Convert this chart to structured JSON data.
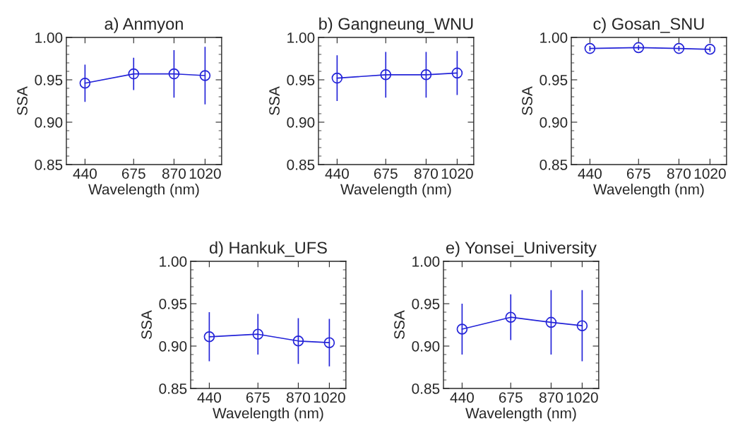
{
  "chart_data": [
    {
      "type": "line",
      "title": "a) Anmyon",
      "xlabel": "Wavelength (nm)",
      "ylabel": "SSA",
      "x": [
        440,
        675,
        870,
        1020
      ],
      "xlim": [
        350,
        1100
      ],
      "xticks": [
        440,
        675,
        870,
        1020
      ],
      "ylim": [
        0.85,
        1.0
      ],
      "yticks": [
        {
          "value": 0.85,
          "label": "0.85"
        },
        {
          "value": 0.9,
          "label": "0.90"
        },
        {
          "value": 0.95,
          "label": "0.95"
        },
        {
          "value": 1.0,
          "label": "1.00"
        }
      ],
      "marker": "circle",
      "grid": false,
      "legend": false,
      "series": [
        {
          "color": "#2323d8",
          "values": [
            0.946,
            0.957,
            0.957,
            0.955
          ],
          "errors": [
            0.022,
            0.019,
            0.028,
            0.034
          ]
        }
      ]
    },
    {
      "type": "line",
      "title": "b) Gangneung_WNU",
      "xlabel": "Wavelength (nm)",
      "ylabel": "SSA",
      "x": [
        440,
        675,
        870,
        1020
      ],
      "xlim": [
        350,
        1100
      ],
      "xticks": [
        440,
        675,
        870,
        1020
      ],
      "ylim": [
        0.85,
        1.0
      ],
      "yticks": [
        {
          "value": 0.85,
          "label": "0.85"
        },
        {
          "value": 0.9,
          "label": "0.90"
        },
        {
          "value": 0.95,
          "label": "0.95"
        },
        {
          "value": 1.0,
          "label": "1.00"
        }
      ],
      "marker": "circle",
      "grid": false,
      "legend": false,
      "series": [
        {
          "color": "#2323d8",
          "values": [
            0.952,
            0.956,
            0.956,
            0.958
          ],
          "errors": [
            0.027,
            0.027,
            0.027,
            0.026
          ]
        }
      ]
    },
    {
      "type": "line",
      "title": "c) Gosan_SNU",
      "xlabel": "Wavelength (nm)",
      "ylabel": "SSA",
      "x": [
        440,
        675,
        870,
        1020
      ],
      "xlim": [
        350,
        1100
      ],
      "xticks": [
        440,
        675,
        870,
        1020
      ],
      "ylim": [
        0.85,
        1.0
      ],
      "yticks": [
        {
          "value": 0.85,
          "label": "0.85"
        },
        {
          "value": 0.9,
          "label": "0.90"
        },
        {
          "value": 0.95,
          "label": "0.95"
        },
        {
          "value": 1.0,
          "label": "1.00"
        }
      ],
      "marker": "circle",
      "grid": false,
      "legend": false,
      "series": [
        {
          "color": "#2323d8",
          "values": [
            0.987,
            0.988,
            0.987,
            0.986
          ],
          "errors": [
            0.003,
            0.003,
            0.003,
            0.003
          ]
        }
      ]
    },
    {
      "type": "line",
      "title": "d) Hankuk_UFS",
      "xlabel": "Wavelength (nm)",
      "ylabel": "SSA",
      "x": [
        440,
        675,
        870,
        1020
      ],
      "xlim": [
        350,
        1100
      ],
      "xticks": [
        440,
        675,
        870,
        1020
      ],
      "ylim": [
        0.85,
        1.0
      ],
      "yticks": [
        {
          "value": 0.85,
          "label": "0.85"
        },
        {
          "value": 0.9,
          "label": "0.90"
        },
        {
          "value": 0.95,
          "label": "0.95"
        },
        {
          "value": 1.0,
          "label": "1.00"
        }
      ],
      "marker": "circle",
      "grid": false,
      "legend": false,
      "series": [
        {
          "color": "#2323d8",
          "values": [
            0.911,
            0.914,
            0.906,
            0.904
          ],
          "errors": [
            0.029,
            0.024,
            0.027,
            0.028
          ]
        }
      ]
    },
    {
      "type": "line",
      "title": "e) Yonsei_University",
      "xlabel": "Wavelength (nm)",
      "ylabel": "SSA",
      "x": [
        440,
        675,
        870,
        1020
      ],
      "xlim": [
        350,
        1100
      ],
      "xticks": [
        440,
        675,
        870,
        1020
      ],
      "ylim": [
        0.85,
        1.0
      ],
      "yticks": [
        {
          "value": 0.85,
          "label": "0.85"
        },
        {
          "value": 0.9,
          "label": "0.90"
        },
        {
          "value": 0.95,
          "label": "0.95"
        },
        {
          "value": 1.0,
          "label": "1.00"
        }
      ],
      "marker": "circle",
      "grid": false,
      "legend": false,
      "series": [
        {
          "color": "#2323d8",
          "values": [
            0.92,
            0.934,
            0.928,
            0.924
          ],
          "errors": [
            0.03,
            0.027,
            0.038,
            0.042
          ]
        }
      ]
    }
  ]
}
